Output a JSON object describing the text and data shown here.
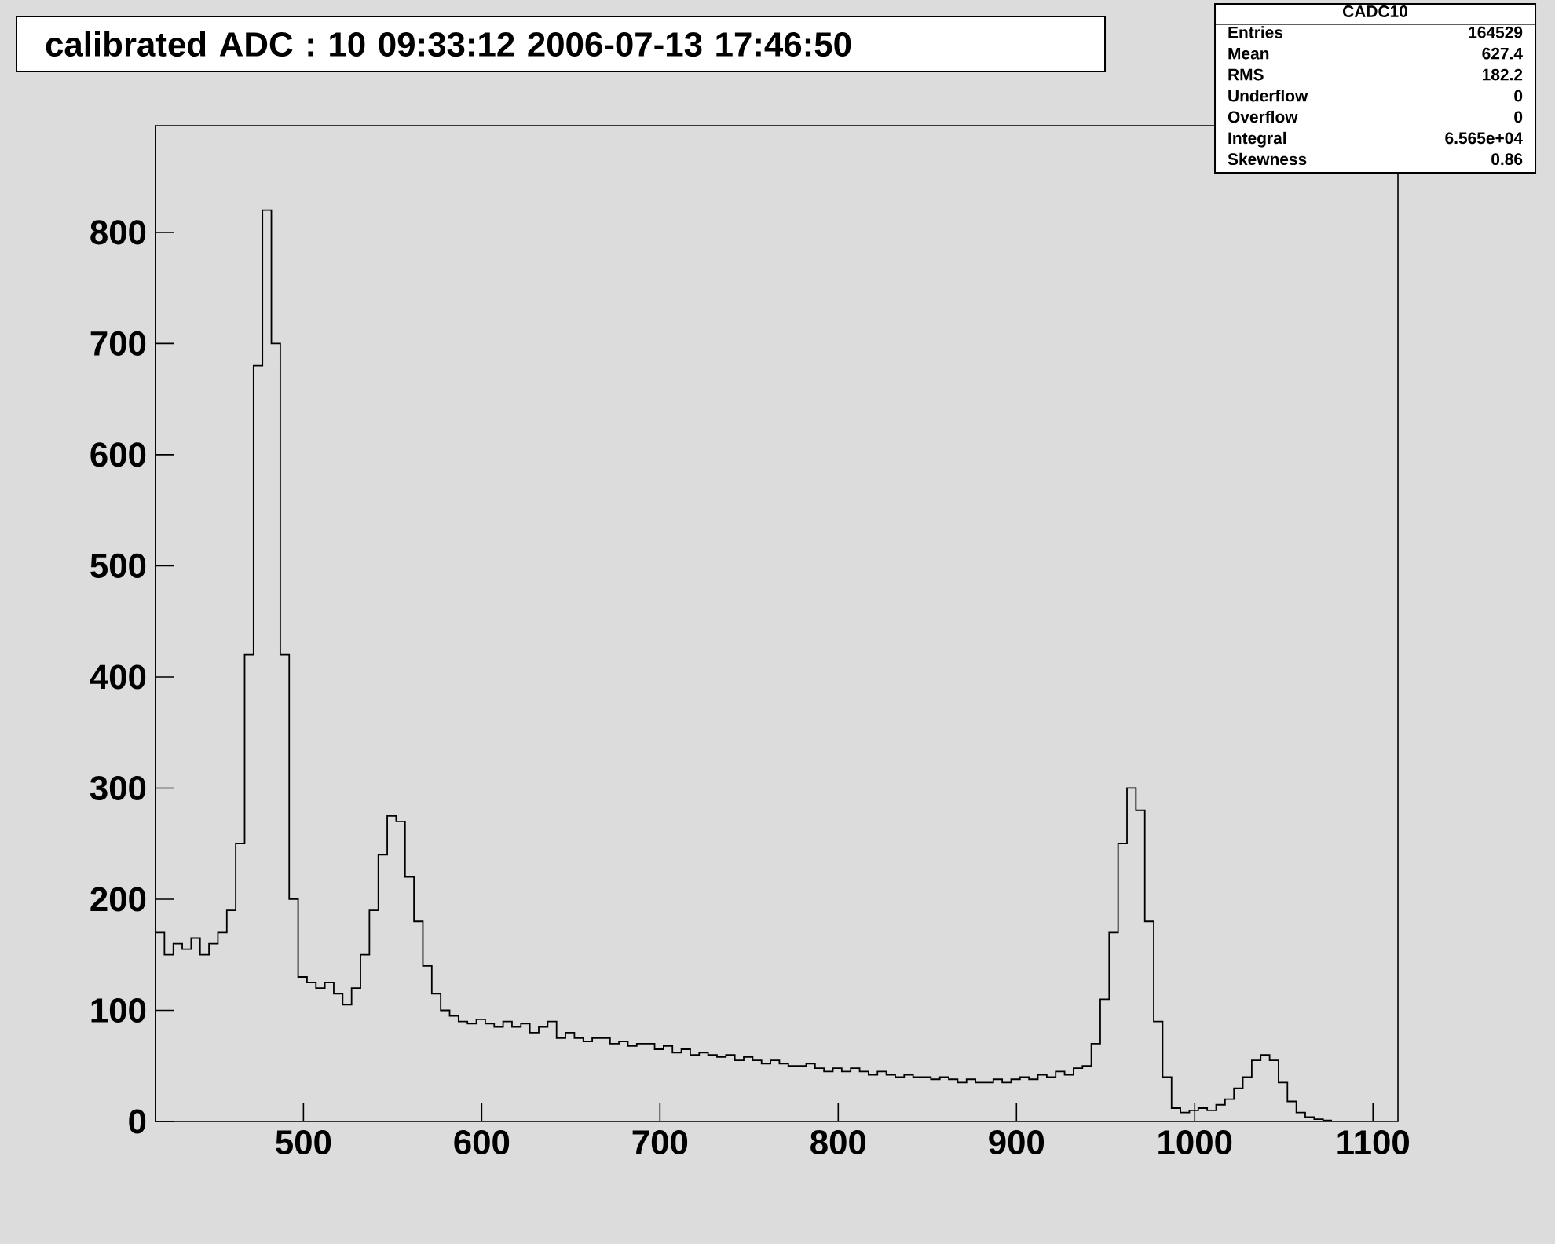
{
  "chart_data": {
    "type": "histogram",
    "title": "calibrated ADC :  10  09:33:12  2006-07-13  17:46:50",
    "bins": [
      417,
      422,
      427,
      432,
      437,
      442,
      447,
      452,
      457,
      462,
      467,
      472,
      477,
      482,
      487,
      492,
      497,
      502,
      507,
      512,
      517,
      522,
      527,
      532,
      537,
      542,
      547,
      552,
      557,
      562,
      567,
      572,
      577,
      582,
      587,
      592,
      597,
      602,
      607,
      612,
      617,
      622,
      627,
      632,
      637,
      642,
      647,
      652,
      657,
      662,
      667,
      672,
      677,
      682,
      687,
      692,
      697,
      702,
      707,
      712,
      717,
      722,
      727,
      732,
      737,
      742,
      747,
      752,
      757,
      762,
      767,
      772,
      777,
      782,
      787,
      792,
      797,
      802,
      807,
      812,
      817,
      822,
      827,
      832,
      837,
      842,
      847,
      852,
      857,
      862,
      867,
      872,
      877,
      882,
      887,
      892,
      897,
      902,
      907,
      912,
      917,
      922,
      927,
      932,
      937,
      942,
      947,
      952,
      957,
      962,
      967,
      972,
      977,
      982,
      987,
      992,
      997,
      1002,
      1007,
      1012,
      1017,
      1022,
      1027,
      1032,
      1037,
      1042,
      1047,
      1052,
      1057,
      1062,
      1067,
      1072,
      1077
    ],
    "values": [
      170,
      150,
      160,
      155,
      165,
      150,
      160,
      170,
      190,
      250,
      420,
      680,
      820,
      700,
      420,
      200,
      130,
      125,
      120,
      125,
      115,
      105,
      120,
      150,
      190,
      240,
      275,
      270,
      220,
      180,
      140,
      115,
      100,
      95,
      90,
      88,
      92,
      88,
      85,
      90,
      85,
      88,
      80,
      85,
      90,
      75,
      80,
      75,
      72,
      75,
      75,
      70,
      72,
      68,
      70,
      70,
      65,
      68,
      62,
      65,
      60,
      62,
      60,
      58,
      60,
      55,
      58,
      55,
      52,
      55,
      52,
      50,
      50,
      52,
      48,
      45,
      48,
      45,
      48,
      45,
      42,
      45,
      42,
      40,
      42,
      40,
      40,
      38,
      40,
      38,
      35,
      38,
      35,
      35,
      38,
      35,
      38,
      40,
      38,
      42,
      40,
      45,
      42,
      48,
      50,
      70,
      110,
      170,
      250,
      300,
      280,
      180,
      90,
      40,
      12,
      8,
      10,
      12,
      10,
      15,
      20,
      30,
      40,
      55,
      60,
      55,
      35,
      18,
      8,
      4,
      2,
      1
    ],
    "color": "#000000",
    "xlim": [
      417,
      1114
    ],
    "ylim": [
      0,
      896
    ],
    "xticks": [
      500,
      600,
      700,
      800,
      900,
      1000,
      1100
    ],
    "yticks": [
      0,
      100,
      200,
      300,
      400,
      500,
      600,
      700,
      800
    ],
    "annotations": [
      "CADC10",
      "Entries",
      "164529",
      "Mean",
      "627.4",
      "RMS",
      "182.2",
      "Underflow",
      "0",
      "Overflow",
      "0",
      "Integral",
      "6.565e+04",
      "Skewness",
      "0.86"
    ]
  }
}
